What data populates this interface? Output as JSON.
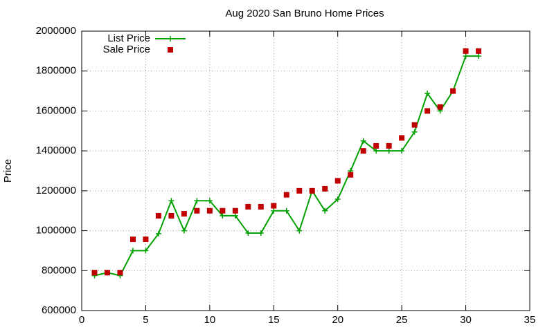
{
  "chart_data": {
    "type": "line",
    "title": "Aug 2020 San Bruno Home Prices",
    "y_label": "Price",
    "x": [
      1,
      2,
      3,
      4,
      5,
      6,
      7,
      8,
      9,
      10,
      11,
      12,
      13,
      14,
      15,
      16,
      17,
      18,
      19,
      20,
      21,
      22,
      23,
      24,
      25,
      26,
      27,
      28,
      29,
      30,
      31
    ],
    "series": [
      {
        "name": "List Price",
        "color": "#00a000",
        "style": "linespoints",
        "values": [
          775000,
          790000,
          775000,
          900000,
          900000,
          985000,
          1150000,
          1000000,
          1150000,
          1150000,
          1075000,
          1075000,
          988000,
          988000,
          1100000,
          1100000,
          1000000,
          1200000,
          1100000,
          1158000,
          1300000,
          1450000,
          1400000,
          1400000,
          1400000,
          1495000,
          1688000,
          1600000,
          1700000,
          1875000,
          1875000
        ]
      },
      {
        "name": "Sale Price",
        "color": "#c00000",
        "style": "points",
        "values": [
          790000,
          790000,
          790000,
          957000,
          957000,
          1075000,
          1075000,
          1085000,
          1100000,
          1100000,
          1100000,
          1100000,
          1120000,
          1120000,
          1125000,
          1180000,
          1200000,
          1200000,
          1210000,
          1250000,
          1280000,
          1400000,
          1425000,
          1425000,
          1465000,
          1530000,
          1600000,
          1620000,
          1700000,
          1900000,
          1900000
        ]
      }
    ],
    "xlim": [
      0,
      35
    ],
    "xticks": [
      0,
      5,
      10,
      15,
      20,
      25,
      30,
      35
    ],
    "ylim": [
      600000,
      2000000
    ],
    "yticks": [
      600000,
      800000,
      1000000,
      1200000,
      1400000,
      1600000,
      1800000,
      2000000
    ],
    "grid": true,
    "legend": "top-left"
  }
}
